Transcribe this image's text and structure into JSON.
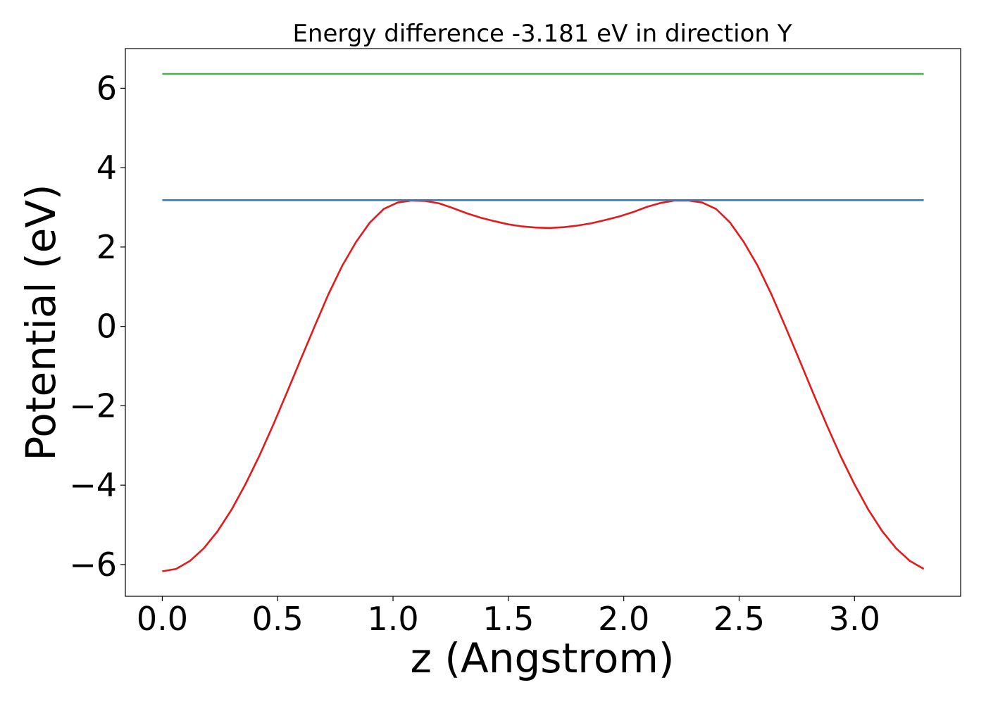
{
  "chart_data": {
    "type": "line",
    "title": "Energy difference -3.181 eV in direction Y",
    "xlabel": "z (Angstrom)",
    "ylabel": "Potential (eV)",
    "xlim": [
      -0.16,
      3.46
    ],
    "ylim": [
      -6.8,
      7.0
    ],
    "grid": false,
    "xticks": [
      0.0,
      0.5,
      1.0,
      1.5,
      2.0,
      2.5,
      3.0
    ],
    "xtick_labels": [
      "0.0",
      "0.5",
      "1.0",
      "1.5",
      "2.0",
      "2.5",
      "3.0"
    ],
    "yticks": [
      -6,
      -4,
      -2,
      0,
      2,
      4,
      6
    ],
    "ytick_labels": [
      "−6",
      "−4",
      "−2",
      "0",
      "2",
      "4",
      "6"
    ],
    "series": [
      {
        "color": "#e41a1c",
        "x": [
          0.0,
          0.06,
          0.12,
          0.18,
          0.24,
          0.3,
          0.36,
          0.42,
          0.48,
          0.54,
          0.6,
          0.66,
          0.72,
          0.78,
          0.84,
          0.9,
          0.96,
          1.02,
          1.08,
          1.14,
          1.2,
          1.26,
          1.32,
          1.38,
          1.44,
          1.5,
          1.56,
          1.62,
          1.68,
          1.74,
          1.8,
          1.86,
          1.92,
          1.98,
          2.04,
          2.1,
          2.16,
          2.22,
          2.28,
          2.34,
          2.4,
          2.46,
          2.52,
          2.58,
          2.64,
          2.7,
          2.76,
          2.82,
          2.88,
          2.94,
          3.0,
          3.06,
          3.12,
          3.18,
          3.24,
          3.3
        ],
        "y": [
          -6.17,
          -6.11,
          -5.91,
          -5.59,
          -5.16,
          -4.62,
          -3.98,
          -3.27,
          -2.49,
          -1.67,
          -0.83,
          0.0,
          0.81,
          1.53,
          2.13,
          2.62,
          2.96,
          3.12,
          3.17,
          3.16,
          3.1,
          2.98,
          2.85,
          2.74,
          2.65,
          2.57,
          2.52,
          2.49,
          2.48,
          2.5,
          2.54,
          2.6,
          2.68,
          2.77,
          2.88,
          3.01,
          3.11,
          3.17,
          3.17,
          3.12,
          2.96,
          2.62,
          2.13,
          1.53,
          0.81,
          0.0,
          -0.83,
          -1.67,
          -2.49,
          -3.27,
          -3.98,
          -4.62,
          -5.16,
          -5.59,
          -5.91,
          -6.11
        ]
      },
      {
        "color": "#377eb8",
        "x": [
          0.0,
          3.3
        ],
        "y": [
          3.181,
          3.181
        ]
      },
      {
        "color": "#4daf4a",
        "x": [
          0.0,
          3.3
        ],
        "y": [
          6.362,
          6.362
        ]
      }
    ]
  }
}
